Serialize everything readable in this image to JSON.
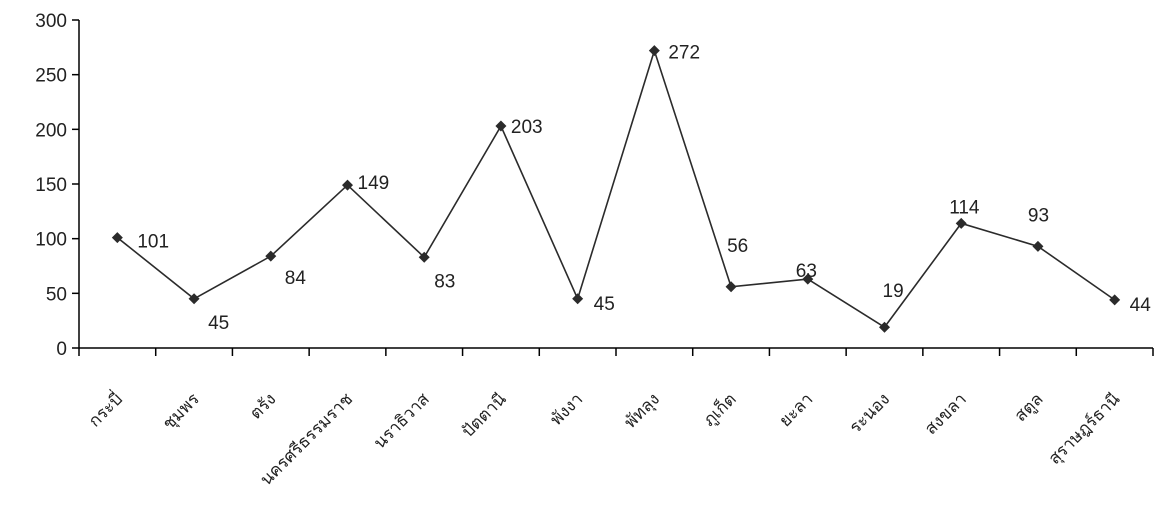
{
  "chart_data": {
    "type": "line",
    "title": "",
    "xlabel": "",
    "ylabel": "",
    "ylim": [
      0,
      300
    ],
    "yticks": [
      0,
      50,
      100,
      150,
      200,
      250,
      300
    ],
    "grid": false,
    "legend": "none",
    "categories": [
      "กระบี่",
      "ชุมพร",
      "ตรัง",
      "นครศรีธรรมราช",
      "นราธิวาส",
      "ปัตตานี",
      "พังงา",
      "พัทลุง",
      "ภูเก็ต",
      "ยะลา",
      "ระนอง",
      "สงขลา",
      "สตูล",
      "สุราษฎร์ธานี"
    ],
    "series": [
      {
        "values": [
          101,
          45,
          84,
          149,
          83,
          203,
          45,
          272,
          56,
          63,
          19,
          114,
          93,
          44
        ]
      }
    ],
    "colors": {
      "line": "#2b2b2b",
      "marker": "#2b2b2b",
      "axis": "#000000"
    }
  }
}
